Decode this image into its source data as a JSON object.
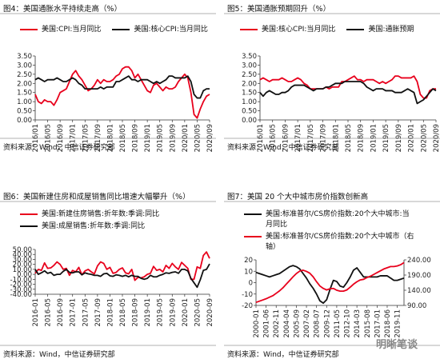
{
  "watermark": "明晰笔谈",
  "chart_data": [
    {
      "type": "line",
      "title": "图4：美国通胀水平持续走高（%）",
      "source": "资料来源：Wind，中信证券研究部",
      "categories": [
        "2016/01",
        null,
        null,
        null,
        "2016/05",
        null,
        null,
        null,
        "2016/09",
        null,
        null,
        null,
        "2017/01",
        null,
        null,
        null,
        "2017/05",
        null,
        null,
        null,
        "2017/09",
        null,
        null,
        null,
        "2018/01",
        null,
        null,
        null,
        "2018/05",
        null,
        null,
        null,
        "2018/09",
        null,
        null,
        null,
        "2019/01",
        null,
        null,
        null,
        "2019/05",
        null,
        null,
        null,
        "2019/09",
        null,
        null,
        null,
        "2020/01",
        null,
        null,
        null,
        "2020/05",
        null,
        null,
        null,
        "2020/09"
      ],
      "series": [
        {
          "name": "美国:CPI:当月同比",
          "color": "#e8001c",
          "values": [
            1.4,
            1.0,
            0.9,
            1.1,
            1.0,
            1.0,
            0.8,
            1.1,
            1.5,
            1.6,
            1.7,
            2.1,
            2.5,
            2.7,
            2.4,
            2.2,
            1.9,
            1.6,
            1.7,
            1.9,
            2.2,
            2.0,
            2.2,
            2.1,
            2.1,
            2.2,
            2.4,
            2.5,
            2.8,
            2.9,
            2.9,
            2.7,
            2.3,
            2.5,
            2.2,
            1.9,
            1.6,
            1.5,
            1.9,
            2.0,
            1.8,
            1.6,
            1.8,
            1.7,
            1.7,
            1.8,
            2.1,
            2.3,
            2.5,
            2.3,
            1.5,
            0.3,
            0.1,
            0.6,
            1.0,
            1.3,
            1.4
          ]
        },
        {
          "name": "美国:核心CPI:当月同比",
          "color": "#111111",
          "values": [
            2.2,
            2.3,
            2.2,
            2.1,
            2.2,
            2.2,
            2.2,
            2.3,
            2.2,
            2.1,
            2.1,
            2.2,
            2.3,
            2.2,
            2.0,
            1.9,
            1.7,
            1.7,
            1.7,
            1.7,
            1.7,
            1.8,
            1.7,
            1.8,
            1.8,
            1.8,
            2.1,
            2.1,
            2.2,
            2.3,
            2.4,
            2.2,
            2.2,
            2.1,
            2.2,
            2.2,
            2.2,
            2.1,
            2.0,
            2.1,
            2.0,
            2.1,
            2.2,
            2.4,
            2.4,
            2.3,
            2.3,
            2.3,
            2.3,
            2.4,
            2.1,
            1.4,
            1.2,
            1.2,
            1.6,
            1.7,
            1.7
          ]
        }
      ],
      "ylim": [
        0,
        3.5
      ],
      "yticks": [
        {
          "value": 0,
          "label": "0.00"
        },
        {
          "value": 0.5,
          "label": "0.50"
        },
        {
          "value": 1,
          "label": "1.00"
        },
        {
          "value": 1.5,
          "label": "1.50"
        },
        {
          "value": 2,
          "label": "2.00"
        },
        {
          "value": 2.5,
          "label": "2.50"
        },
        {
          "value": 3,
          "label": "3.00"
        },
        {
          "value": 3.5,
          "label": "3.50"
        }
      ]
    },
    {
      "type": "line",
      "title": "图5：美国通胀预期回升（%）",
      "source": "资料来源：Wind，中信证券研究部",
      "categories": [
        "2016/01",
        null,
        null,
        null,
        "2016/05",
        null,
        null,
        null,
        "2016/09",
        null,
        null,
        null,
        "2017/01",
        null,
        null,
        null,
        "2017/05",
        null,
        null,
        null,
        "2017/09",
        null,
        null,
        null,
        "2018/01",
        null,
        null,
        null,
        "2018/05",
        null,
        null,
        null,
        "2018/09",
        null,
        null,
        null,
        "2019/01",
        null,
        null,
        null,
        "2019/05",
        null,
        null,
        null,
        "2019/09",
        null,
        null,
        null,
        "2020/01",
        null,
        null,
        null,
        "2020/05",
        null,
        null,
        null,
        "2020/09"
      ],
      "series": [
        {
          "name": "美国:核心CPI:当月同比",
          "color": "#e8001c",
          "values": [
            2.2,
            2.3,
            2.2,
            2.1,
            2.2,
            2.2,
            2.2,
            2.3,
            2.2,
            2.1,
            2.1,
            2.2,
            2.3,
            2.2,
            2.0,
            1.9,
            1.7,
            1.7,
            1.7,
            1.7,
            1.7,
            1.8,
            1.7,
            1.8,
            1.8,
            1.8,
            2.1,
            2.1,
            2.2,
            2.3,
            2.4,
            2.2,
            2.2,
            2.1,
            2.2,
            2.2,
            2.2,
            2.1,
            2.0,
            2.1,
            2.0,
            2.1,
            2.2,
            2.4,
            2.4,
            2.3,
            2.3,
            2.3,
            2.3,
            2.4,
            2.1,
            1.4,
            1.2,
            1.2,
            1.6,
            1.7,
            1.7
          ]
        },
        {
          "name": "美国:通胀预期",
          "color": "#111111",
          "values": [
            1.5,
            1.3,
            1.5,
            1.6,
            1.5,
            1.4,
            1.4,
            1.5,
            1.5,
            1.6,
            1.8,
            1.9,
            1.9,
            1.9,
            1.9,
            1.8,
            1.7,
            1.6,
            1.7,
            1.7,
            1.7,
            1.8,
            1.8,
            1.9,
            2.0,
            2.0,
            2.0,
            2.1,
            2.1,
            2.1,
            2.1,
            2.1,
            2.1,
            2.0,
            1.8,
            1.7,
            1.6,
            1.7,
            1.7,
            1.7,
            1.6,
            1.6,
            1.6,
            1.5,
            1.5,
            1.5,
            1.6,
            1.7,
            1.6,
            1.5,
            0.9,
            1.0,
            1.1,
            1.3,
            1.5,
            1.7,
            1.6
          ]
        }
      ],
      "ylim": [
        0,
        3.5
      ],
      "yticks": [
        {
          "value": 0,
          "label": "0.00"
        },
        {
          "value": 0.5,
          "label": "0.50"
        },
        {
          "value": 1,
          "label": "1.00"
        },
        {
          "value": 1.5,
          "label": "1.50"
        },
        {
          "value": 2,
          "label": "2.00"
        },
        {
          "value": 2.5,
          "label": "2.50"
        },
        {
          "value": 3,
          "label": "3.00"
        },
        {
          "value": 3.5,
          "label": "3.50"
        }
      ]
    },
    {
      "type": "line",
      "title": "图6：美国新建住房和成屋销售同比增速大幅攀升（%）",
      "source": "资料来源：Wind，中信证券研究部",
      "categories": [
        "2016-01",
        null,
        null,
        null,
        "2016-05",
        null,
        null,
        null,
        "2016-09",
        null,
        null,
        null,
        "2017-01",
        null,
        null,
        null,
        "2017-05",
        null,
        null,
        null,
        "2017-09",
        null,
        null,
        null,
        "2018-01",
        null,
        null,
        null,
        "2018-05",
        null,
        null,
        null,
        "2018-09",
        null,
        null,
        null,
        "2019-01",
        null,
        null,
        null,
        "2019-05",
        null,
        null,
        null,
        "2019-09",
        null,
        null,
        null,
        "2020-01",
        null,
        null,
        null,
        "2020-05",
        null,
        null,
        null,
        "2020-09"
      ],
      "series": [
        {
          "name": "美国:新建住房销售:折年数:季调:同比",
          "color": "#e8001c",
          "values": [
            2,
            10,
            8,
            23,
            12,
            13,
            18,
            25,
            20,
            10,
            12,
            -2,
            8,
            5,
            14,
            -1,
            7,
            10,
            5,
            1,
            17,
            25,
            22,
            10,
            14,
            2,
            4,
            10,
            13,
            3,
            1,
            10,
            -12,
            -6,
            -7,
            -5,
            0,
            2,
            16,
            8,
            10,
            5,
            18,
            12,
            22,
            15,
            10,
            24,
            18,
            12,
            -10,
            -10,
            15,
            12,
            38,
            45,
            32
          ]
        },
        {
          "name": "美国:成屋销售:折年数:季调:同比",
          "color": "#111111",
          "values": [
            10,
            0,
            3,
            7,
            2,
            4,
            -2,
            0,
            0,
            6,
            10,
            4,
            3,
            5,
            5,
            -1,
            3,
            1,
            0,
            -2,
            -2,
            -4,
            1,
            2,
            -3,
            -4,
            -1,
            -2,
            -4,
            -2,
            -5,
            -2,
            -4,
            -4,
            -8,
            -10,
            -8,
            -2,
            -5,
            -5,
            -2,
            0,
            3,
            2,
            4,
            5,
            2,
            10,
            10,
            7,
            -8,
            -17,
            -26,
            -11,
            8,
            10,
            21
          ]
        }
      ],
      "ylim": [
        -40,
        50
      ],
      "yticks": [
        {
          "value": -40,
          "label": "-40.00"
        },
        {
          "value": -30,
          "label": "-30.00"
        },
        {
          "value": -20,
          "label": "-20.00"
        },
        {
          "value": -10,
          "label": "-10.00"
        },
        {
          "value": 0,
          "label": "0.00"
        },
        {
          "value": 10,
          "label": "10.00"
        },
        {
          "value": 20,
          "label": "20.00"
        },
        {
          "value": 30,
          "label": "30.00"
        },
        {
          "value": 40,
          "label": "40.00"
        },
        {
          "value": 50,
          "label": "50.00"
        }
      ]
    },
    {
      "type": "line",
      "title": "图7：美国 20 个大中城市房价指数创新高",
      "source": "资料来源：Wind，中信证券研究部",
      "categories": [
        "2000-01",
        null,
        null,
        "2001-06",
        null,
        null,
        "2002-11",
        null,
        null,
        "2004-04",
        null,
        null,
        "2005-09",
        null,
        null,
        "2007-02",
        null,
        null,
        "2008-07",
        null,
        null,
        "2009-12",
        null,
        null,
        "2011-05",
        null,
        null,
        "2012-10",
        null,
        null,
        "2014-03",
        null,
        null,
        "2015-08",
        null,
        null,
        "2017-01",
        null,
        null,
        "2018-06",
        null,
        null,
        "2019-11",
        null,
        null
      ],
      "series": [
        {
          "name": "美国:标准普尔/CS房价指数:20个大中城市:当月同比",
          "color": "#111111",
          "values": [
            9,
            8,
            7,
            6,
            5,
            6,
            7,
            8,
            10,
            12,
            14,
            15,
            14,
            12,
            8,
            4,
            -1,
            -5,
            -10,
            -16,
            -18,
            -15,
            -6,
            2,
            1,
            -3,
            -4,
            0,
            5,
            11,
            13,
            9,
            5,
            5,
            5,
            5,
            5,
            6,
            6,
            6,
            4,
            2,
            2,
            3,
            4
          ]
        },
        {
          "name": "美国:标准普尔/CS房价指数:20个大中城市（右轴）",
          "color": "#e8001c",
          "axis": "y2",
          "values": [
            100,
            104,
            108,
            112,
            117,
            122,
            130,
            138,
            148,
            160,
            172,
            184,
            195,
            203,
            206,
            202,
            196,
            184,
            168,
            154,
            146,
            141,
            145,
            146,
            140,
            137,
            137,
            141,
            150,
            160,
            168,
            174,
            176,
            182,
            186,
            192,
            198,
            204,
            210,
            214,
            218,
            218,
            220,
            224,
            231
          ]
        }
      ],
      "ylim": [
        -20,
        20
      ],
      "yticks": [
        -20,
        -10,
        0,
        10,
        20
      ],
      "y2lim": [
        90,
        240
      ],
      "y2ticks": [
        {
          "value": 90,
          "label": "90.00"
        },
        {
          "value": 140,
          "label": "140.00"
        },
        {
          "value": 190,
          "label": "190.00"
        },
        {
          "value": 240,
          "label": "240.00"
        }
      ]
    }
  ]
}
